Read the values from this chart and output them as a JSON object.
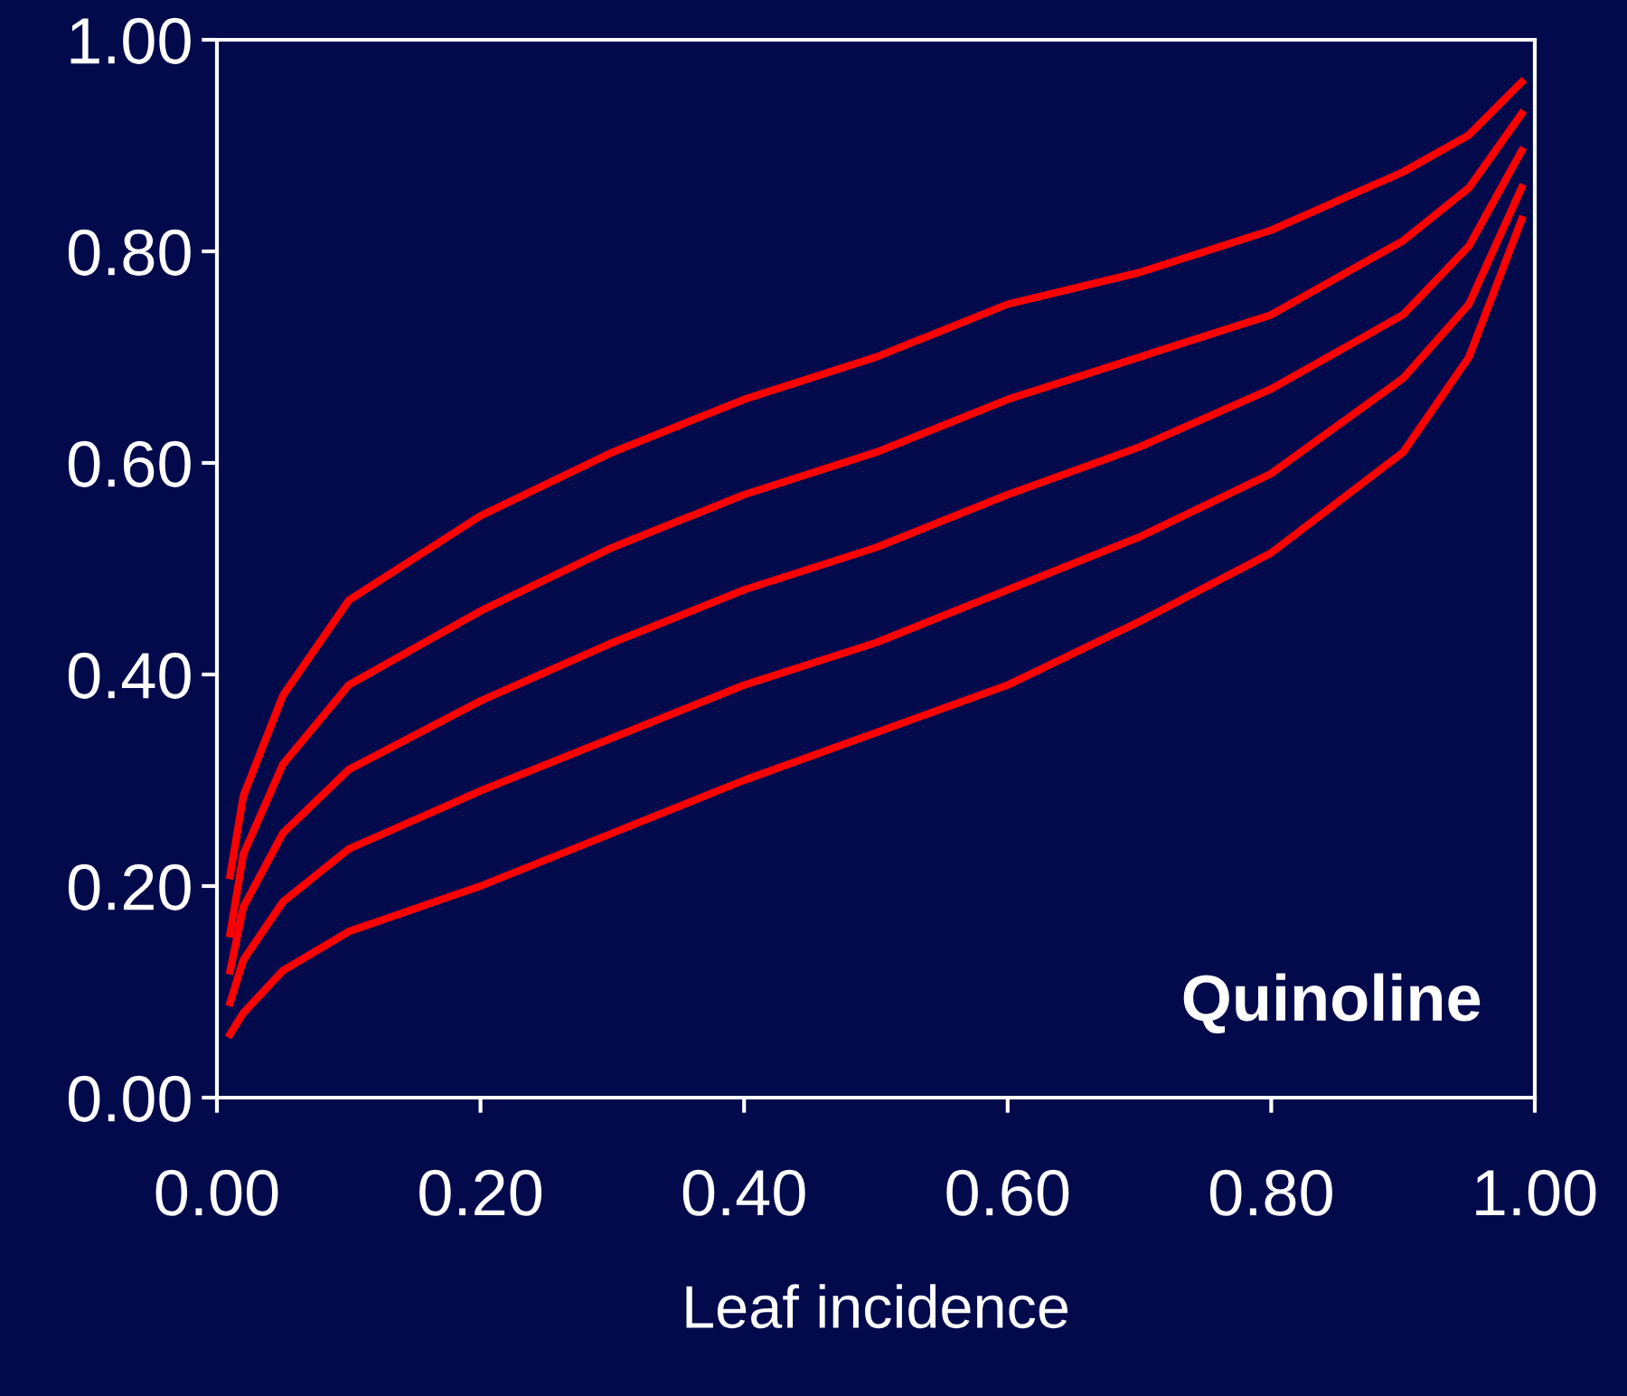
{
  "chart_data": {
    "type": "line",
    "xlabel": "Leaf incidence",
    "annotations": [
      "Quinoline"
    ],
    "x": [
      0.01,
      0.02,
      0.05,
      0.1,
      0.2,
      0.3,
      0.4,
      0.5,
      0.6,
      0.7,
      0.8,
      0.9,
      0.95,
      0.99
    ],
    "series": [
      {
        "color": "#ff0000",
        "values": [
          0.21,
          0.285,
          0.38,
          0.47,
          0.55,
          0.61,
          0.66,
          0.7,
          0.75,
          0.78,
          0.82,
          0.875,
          0.91,
          0.96
        ]
      },
      {
        "color": "#ff0000",
        "values": [
          0.155,
          0.23,
          0.315,
          0.39,
          0.46,
          0.52,
          0.57,
          0.61,
          0.66,
          0.7,
          0.74,
          0.81,
          0.86,
          0.93
        ]
      },
      {
        "color": "#ff0000",
        "values": [
          0.12,
          0.18,
          0.25,
          0.31,
          0.375,
          0.43,
          0.48,
          0.52,
          0.57,
          0.615,
          0.67,
          0.74,
          0.805,
          0.895
        ]
      },
      {
        "color": "#ff0000",
        "values": [
          0.09,
          0.13,
          0.185,
          0.235,
          0.29,
          0.34,
          0.39,
          0.43,
          0.48,
          0.53,
          0.59,
          0.68,
          0.75,
          0.86
        ]
      },
      {
        "color": "#ff0000",
        "values": [
          0.06,
          0.08,
          0.12,
          0.157,
          0.2,
          0.25,
          0.3,
          0.345,
          0.39,
          0.45,
          0.515,
          0.61,
          0.7,
          0.83
        ]
      }
    ],
    "xlim": [
      0,
      1
    ],
    "ylim": [
      0,
      1
    ],
    "xticks": [
      {
        "value": 0,
        "label": "0.00"
      },
      {
        "value": 0.2,
        "label": "0.20"
      },
      {
        "value": 0.4,
        "label": "0.40"
      },
      {
        "value": 0.6,
        "label": "0.60"
      },
      {
        "value": 0.8,
        "label": "0.80"
      },
      {
        "value": 1,
        "label": "1.00"
      }
    ],
    "yticks": [
      {
        "value": 0,
        "label": "0.00"
      },
      {
        "value": 0.2,
        "label": "0.20"
      },
      {
        "value": 0.4,
        "label": "0.40"
      },
      {
        "value": 0.6,
        "label": "0.60"
      },
      {
        "value": 0.8,
        "label": "0.80"
      },
      {
        "value": 1,
        "label": "1.00"
      }
    ],
    "grid": false,
    "legend": false,
    "marker": "none",
    "line_style": "solid"
  }
}
